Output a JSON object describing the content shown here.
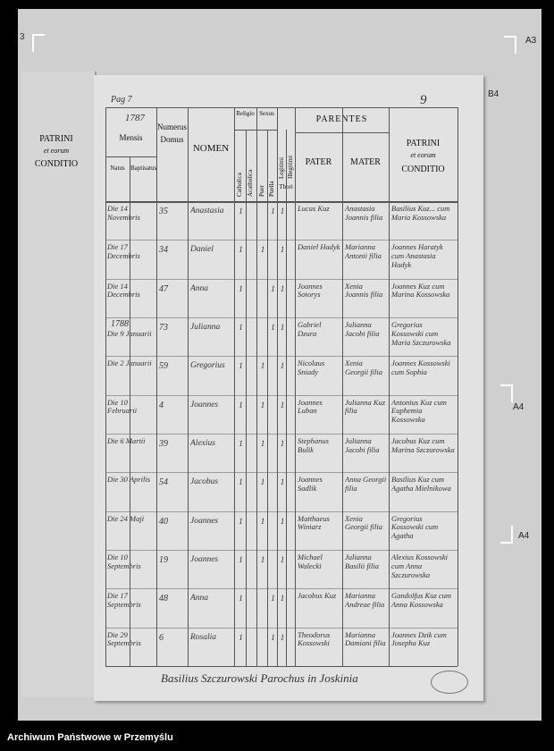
{
  "markers": {
    "left_edge": "3",
    "top_right": "A3",
    "right_b4": "B4",
    "right_a4_upper": "A4",
    "right_a4_lower": "A4"
  },
  "page": {
    "folio": "Pag 7",
    "number": "9",
    "year": "1787"
  },
  "left_page": {
    "title": "PATRINI",
    "subtitle": "et eorum",
    "condition": "CONDITIO"
  },
  "headers": {
    "mensis": "Mensis",
    "natus": "Natus",
    "baptisatus": "Baptisatus",
    "numerus_domus": "Numerus Domus",
    "nomen": "NOMEN",
    "religio": "Religio",
    "catholica": "Catholica",
    "acatholica": "Acatholica",
    "sexus": "Sexus",
    "puer": "Puer",
    "puella": "Puella",
    "legitimi": "Legitimi",
    "illegitimi": "Illegitimi",
    "thori": "Thori",
    "parentes": "PARENTES",
    "pater": "PATER",
    "mater": "MATER",
    "patrini": "PATRINI",
    "patrini_sub": "et eorum",
    "patrini_cond": "CONDITIO"
  },
  "rows": [
    {
      "date": "Die 14 Novembris",
      "domus": "35",
      "nomen": "Anastasia",
      "marks": {
        "catholica": "1",
        "puella": "1",
        "legitimi": "1"
      },
      "pater": "Lucas Kuz",
      "mater": "Anastasia Joannis filia",
      "patrini": "Basilius Kuz... cum Maria Kossowska"
    },
    {
      "date": "Die 17 Decembris",
      "domus": "34",
      "nomen": "Daniel",
      "marks": {
        "catholica": "1",
        "puer": "1",
        "legitimi": "1"
      },
      "pater": "Daniel Hadyk",
      "mater": "Marianna Antonii filia",
      "patrini": "Joannes Haratyk cum Anastasia Hadyk"
    },
    {
      "date": "Die 14 Decembris",
      "domus": "47",
      "nomen": "Anna",
      "marks": {
        "catholica": "1",
        "puella": "1",
        "legitimi": "1"
      },
      "pater": "Joannes Sotorys",
      "mater": "Xenia Joannis filia",
      "patrini": "Joannes Kuz cum Marina Kossowska"
    },
    {
      "year": "1788",
      "date": "Die 9 Januarii",
      "domus": "73",
      "nomen": "Julianna",
      "marks": {
        "catholica": "1",
        "puella": "1",
        "legitimi": "1"
      },
      "pater": "Gabriel Dzura",
      "mater": "Julianna Jacobi filia",
      "patrini": "Gregorius Kossowski cum Maria Szczurowska"
    },
    {
      "date": "Die 2 Januarii",
      "domus": "59",
      "nomen": "Gregorius",
      "marks": {
        "catholica": "1",
        "puer": "1",
        "legitimi": "1"
      },
      "pater": "Nicolaus Sniady",
      "mater": "Xenia Georgii filia",
      "patrini": "Joannes Kossowski cum Sophia"
    },
    {
      "date": "Die 10 Februarii",
      "domus": "4",
      "nomen": "Joannes",
      "marks": {
        "catholica": "1",
        "puer": "1",
        "legitimi": "1"
      },
      "pater": "Joannes Luban",
      "mater": "Julianna Kuz filia",
      "patrini": "Antonius Kuz cum Euphemia Kossowska"
    },
    {
      "date": "Die 6 Martii",
      "domus": "39",
      "nomen": "Alexius",
      "marks": {
        "catholica": "1",
        "puer": "1",
        "legitimi": "1"
      },
      "pater": "Stephanus Bulik",
      "mater": "Julianna Jacobi filia",
      "patrini": "Jacobus Kuz cum Marina Szczurowska"
    },
    {
      "date": "Die 30 Aprilis",
      "domus": "54",
      "nomen": "Jacobus",
      "marks": {
        "catholica": "1",
        "puer": "1",
        "legitimi": "1"
      },
      "pater": "Joannes Sadlik",
      "mater": "Anna Georgii filia",
      "patrini": "Basilius Kuz cum Agatha Mielnikowa"
    },
    {
      "date": "Die 24 Maji",
      "domus": "40",
      "nomen": "Joannes",
      "marks": {
        "catholica": "1",
        "puer": "1",
        "legitimi": "1"
      },
      "pater": "Matthaeus Winiarz",
      "mater": "Xenia Georgii filia",
      "patrini": "Gregorius Kossowski cum Agatha"
    },
    {
      "date": "Die 10 Septembris",
      "domus": "19",
      "nomen": "Joannes",
      "marks": {
        "catholica": "1",
        "puer": "1",
        "legitimi": "1"
      },
      "pater": "Michael Walecki",
      "mater": "Julianna Basilii filia",
      "patrini": "Alexius Kossowski cum Anna Szczurowska"
    },
    {
      "date": "Die 17 Septembris",
      "domus": "48",
      "nomen": "Anna",
      "marks": {
        "catholica": "1",
        "puella": "1",
        "legitimi": "1"
      },
      "pater": "Jacobus Kuz",
      "mater": "Marianna Andreae filia",
      "patrini": "Gandolfus Kuz cum Anna Kossowska"
    },
    {
      "date": "Die 29 Septembris",
      "domus": "6",
      "nomen": "Rosalia",
      "marks": {
        "catholica": "1",
        "puella": "1",
        "legitimi": "1"
      },
      "pater": "Theodorus Kossowski",
      "mater": "Marianna Damiani filia",
      "patrini": "Joannes Dzik cum Josepha Kuz"
    }
  ],
  "signature": "Basilius Szczurowski Parochus in Joskinia",
  "footer": "Archiwum Państwowe w Przemyślu"
}
